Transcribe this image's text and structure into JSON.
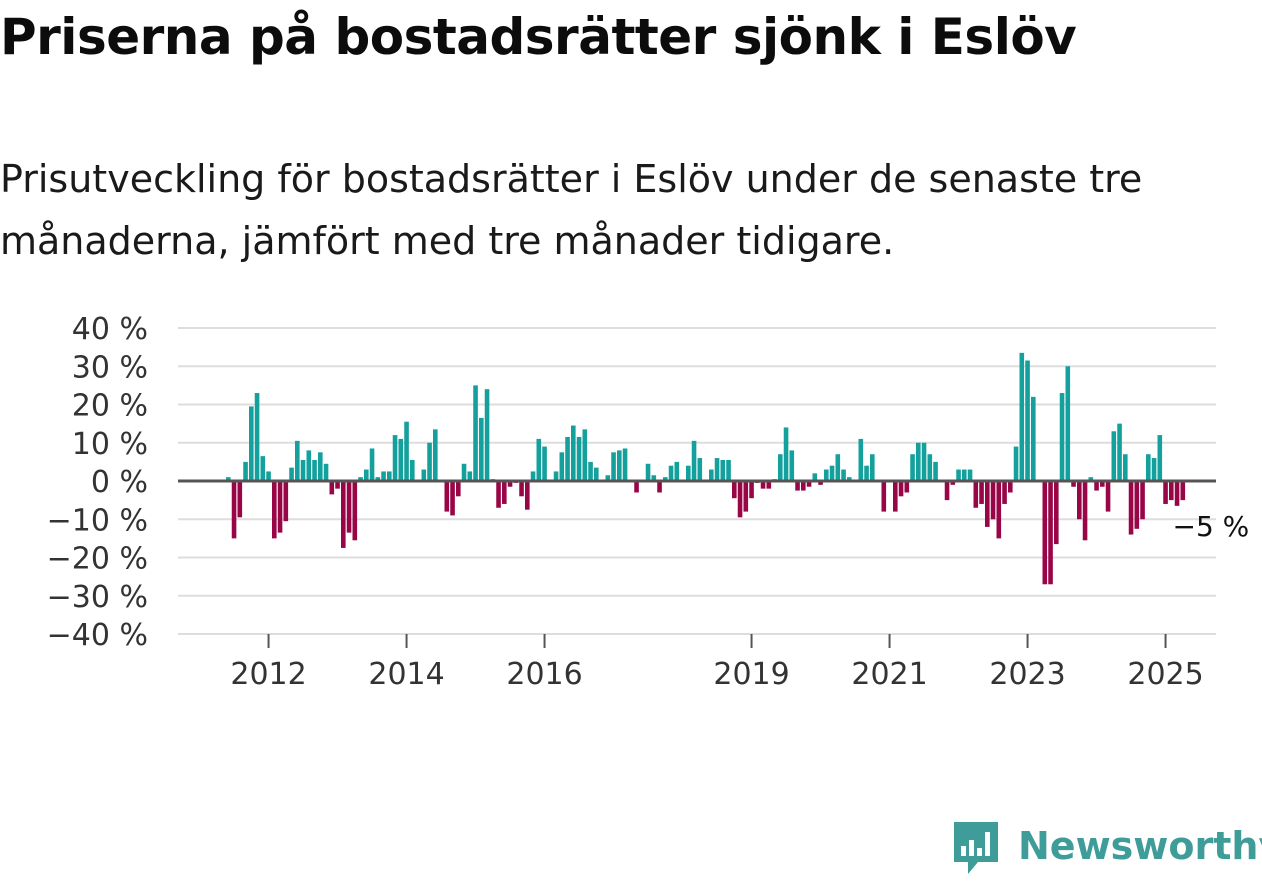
{
  "chart_data": {
    "type": "bar",
    "title": "Priserna på bostadsrätter sjönk i Eslöv",
    "subtitle": "Prisutveckling för bostadsrätter i Eslöv under de senaste tre månaderna, jämfört med tre månader tidigare.",
    "ylabel": "",
    "xlabel": "",
    "ylim": [
      -40,
      40
    ],
    "yticks": [
      "40 %",
      "30 %",
      "20 %",
      "10 %",
      "0 %",
      "−10 %",
      "−20 %",
      "−30 %",
      "−40 %"
    ],
    "ytick_values": [
      40,
      30,
      20,
      10,
      0,
      -10,
      -20,
      -30,
      -40
    ],
    "xticks": [
      "2012",
      "2014",
      "2016",
      "2019",
      "2021",
      "2023",
      "2025"
    ],
    "start": {
      "year": 2011,
      "month": 6
    },
    "series": [
      {
        "name": "Prisutveckling",
        "values": [
          1,
          -15,
          -9.5,
          5,
          19.5,
          23,
          6.5,
          2.5,
          -15,
          -13.5,
          -10.5,
          3.5,
          10.5,
          5.5,
          8,
          5.5,
          7.5,
          4.5,
          -3.5,
          -2,
          -17.5,
          -13.5,
          -15.5,
          1,
          3,
          8.5,
          1,
          2.5,
          2.5,
          12,
          11,
          15.5,
          5.5,
          0,
          3,
          10,
          13.5,
          0,
          -8,
          -9,
          -4,
          4.5,
          2.5,
          25,
          16.5,
          24,
          0.5,
          -7,
          -6,
          -1.5,
          -0.5,
          -4,
          -7.5,
          2.5,
          11,
          9,
          0,
          2.5,
          7.5,
          11.5,
          14.5,
          11.5,
          13.5,
          5,
          3.5,
          0,
          1.5,
          7.5,
          8,
          8.5,
          0,
          -3,
          0,
          4.5,
          1.5,
          -3,
          1,
          4,
          5,
          0,
          4,
          10.5,
          6,
          0,
          3,
          6,
          5.5,
          5.5,
          -4.5,
          -9.5,
          -8,
          -4.5,
          -0.5,
          -2,
          -2,
          0.5,
          7,
          14,
          8,
          -2.5,
          -2.5,
          -1.5,
          2,
          -1,
          3,
          4,
          7,
          3,
          1,
          0,
          11,
          4,
          7,
          0,
          -8,
          0,
          -8,
          -4,
          -3,
          7,
          10,
          10,
          7,
          5,
          0,
          -5,
          -1,
          3,
          3,
          3,
          -7,
          -6,
          -12,
          -10,
          -15,
          -6,
          -3,
          9,
          33.5,
          31.5,
          22,
          0,
          -27,
          -27,
          -16.5,
          23,
          30,
          -1.5,
          -10,
          -15.5,
          1,
          -2.5,
          -1.5,
          -8,
          13,
          15,
          7,
          -14,
          -12.5,
          -10,
          7,
          6,
          12,
          -6,
          -5,
          -6.5,
          -5
        ]
      }
    ],
    "last_label": "−5 %",
    "colors": {
      "positive": "#14a09c",
      "negative": "#990647",
      "grid": "#dddddd",
      "zero": "#555555",
      "text": "#333333"
    }
  },
  "brand": {
    "name": "Newsworthy",
    "color": "#3e9c99"
  }
}
